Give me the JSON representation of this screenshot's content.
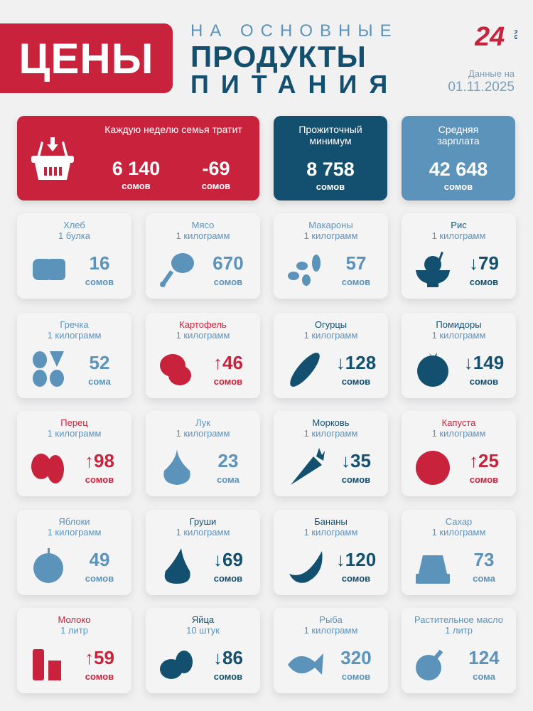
{
  "header": {
    "title": "ЦЕНЫ",
    "line1": "НА ОСНОВНЫЕ",
    "line2": "ПРОДУКТЫ",
    "line3": "ПИТАНИЯ",
    "logo": "24 KG",
    "date_label": "Данные на",
    "date": "01.11.2025"
  },
  "colors": {
    "red": "#c8223c",
    "navy": "#13506f",
    "light": "#5b93bb"
  },
  "summary": [
    {
      "label": "Каждую неделю семья тратит",
      "values": [
        {
          "value": "6 140",
          "unit": "сомов"
        },
        {
          "value": "-69",
          "unit": "сомов"
        }
      ],
      "icon": "basket-icon"
    },
    {
      "label": "Прожиточный минимум",
      "value": "8 758",
      "unit": "сомов"
    },
    {
      "label": "Средняя зарплата",
      "value": "42 648",
      "unit": "сомов"
    }
  ],
  "items": [
    {
      "name": "Хлеб",
      "qty": "1 булка",
      "value": "16",
      "unit": "сомов",
      "trend": "same",
      "icon": "bread-icon"
    },
    {
      "name": "Мясо",
      "qty": "1 килограмм",
      "value": "670",
      "unit": "сомов",
      "trend": "same",
      "icon": "meat-icon"
    },
    {
      "name": "Макароны",
      "qty": "1 килограмм",
      "value": "57",
      "unit": "сомов",
      "trend": "same",
      "icon": "pasta-icon"
    },
    {
      "name": "Рис",
      "qty": "1 килограмм",
      "value": "↓79",
      "unit": "сомов",
      "trend": "down",
      "icon": "rice-icon"
    },
    {
      "name": "Гречка",
      "qty": "1 килограмм",
      "value": "52",
      "unit": "сома",
      "trend": "same",
      "icon": "buckwheat-icon"
    },
    {
      "name": "Картофель",
      "qty": "1 килограмм",
      "value": "↑46",
      "unit": "сомов",
      "trend": "up",
      "icon": "potato-icon"
    },
    {
      "name": "Огурцы",
      "qty": "1 килограмм",
      "value": "↓128",
      "unit": "сомов",
      "trend": "down",
      "icon": "cucumber-icon"
    },
    {
      "name": "Помидоры",
      "qty": "1 килограмм",
      "value": "↓149",
      "unit": "сомов",
      "trend": "down",
      "icon": "tomato-icon"
    },
    {
      "name": "Перец",
      "qty": "1 килограмм",
      "value": "↑98",
      "unit": "сомов",
      "trend": "up",
      "icon": "pepper-icon"
    },
    {
      "name": "Лук",
      "qty": "1 килограмм",
      "value": "23",
      "unit": "сома",
      "trend": "same",
      "icon": "onion-icon"
    },
    {
      "name": "Морковь",
      "qty": "1 килограмм",
      "value": "↓35",
      "unit": "сомов",
      "trend": "down",
      "icon": "carrot-icon"
    },
    {
      "name": "Капуста",
      "qty": "1 килограмм",
      "value": "↑25",
      "unit": "сомов",
      "trend": "up",
      "icon": "cabbage-icon"
    },
    {
      "name": "Яблоки",
      "qty": "1 килограмм",
      "value": "49",
      "unit": "сомов",
      "trend": "same",
      "icon": "apple-icon"
    },
    {
      "name": "Груши",
      "qty": "1 килограмм",
      "value": "↓69",
      "unit": "сомов",
      "trend": "down",
      "icon": "pear-icon"
    },
    {
      "name": "Бананы",
      "qty": "1 килограмм",
      "value": "↓120",
      "unit": "сомов",
      "trend": "down",
      "icon": "banana-icon"
    },
    {
      "name": "Сахар",
      "qty": "1 килограмм",
      "value": "73",
      "unit": "сома",
      "trend": "same",
      "icon": "sugar-icon"
    },
    {
      "name": "Молоко",
      "qty": "1 литр",
      "value": "↑59",
      "unit": "сомов",
      "trend": "up",
      "icon": "milk-icon"
    },
    {
      "name": "Яйца",
      "qty": "10 штук",
      "value": "↓86",
      "unit": "сомов",
      "trend": "down",
      "icon": "eggs-icon"
    },
    {
      "name": "Рыба",
      "qty": "1 килограмм",
      "value": "320",
      "unit": "сомов",
      "trend": "same",
      "icon": "fish-icon"
    },
    {
      "name": "Растительное масло",
      "qty": "1 литр",
      "value": "124",
      "unit": "сома",
      "trend": "same",
      "icon": "oil-icon"
    }
  ]
}
